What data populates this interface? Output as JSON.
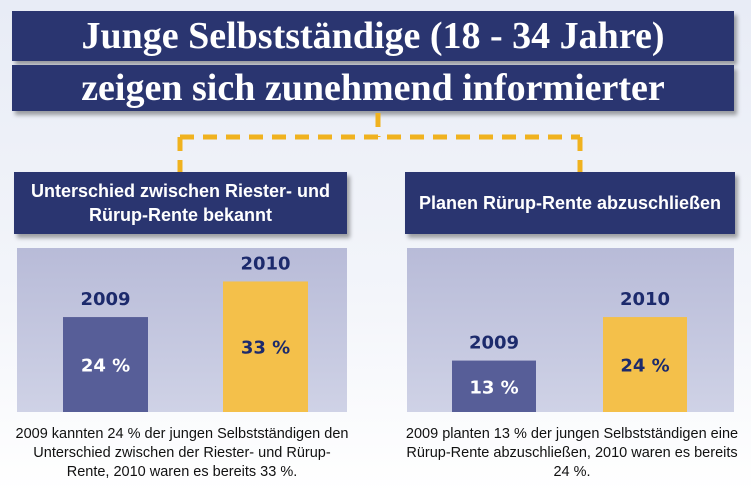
{
  "header": {
    "line1": "Junge Selbstständige (18 - 34 Jahre)",
    "line2": "zeigen sich zunehmend informierter"
  },
  "colors": {
    "navy": "#2a3570",
    "bar_2009": "#575e98",
    "bar_2010": "#f4c04a",
    "connector": "#f0b21f",
    "label_dark": "#1c2a6c"
  },
  "chart_data": [
    {
      "type": "bar",
      "title": "Unterschied zwischen Riester- und Rürup-Rente bekannt",
      "categories": [
        "2009",
        "2010"
      ],
      "values": [
        24,
        33
      ],
      "value_labels": [
        "24 %",
        "33 %"
      ],
      "ylim": [
        0,
        45
      ],
      "grid": false,
      "caption": "2009 kannten 24 % der jungen Selbstständigen den Unterschied zwischen der Riester- und Rürup-Rente, 2010 waren es bereits 33 %."
    },
    {
      "type": "bar",
      "title": "Planen Rürup-Rente abzuschließen",
      "categories": [
        "2009",
        "2010"
      ],
      "values": [
        13,
        24
      ],
      "value_labels": [
        "13 %",
        "24 %"
      ],
      "ylim": [
        0,
        45
      ],
      "grid": false,
      "caption": "2009 planten 13 % der jungen Selbstständigen eine Rürup-Rente abzuschließen, 2010 waren es bereits 24 %."
    }
  ]
}
